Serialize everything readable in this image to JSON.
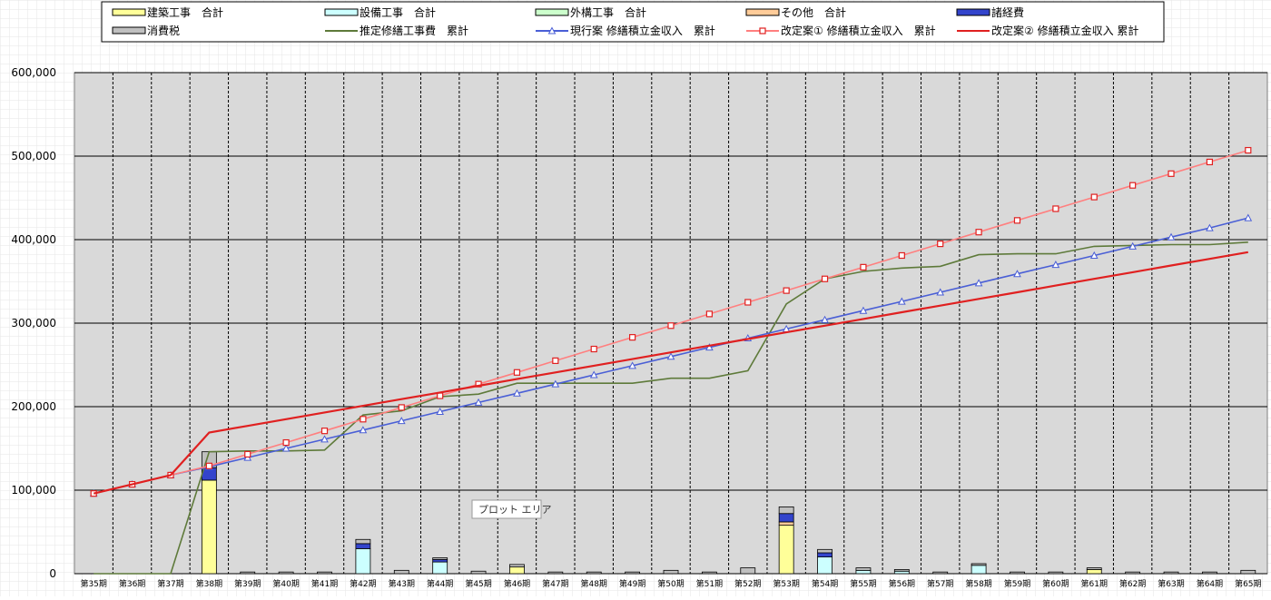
{
  "chart_data": {
    "type": "bar",
    "subtype": "stacked bar with cumulative lines",
    "categories": [
      "第35期",
      "第36期",
      "第37期",
      "第38期",
      "第39期",
      "第40期",
      "第41期",
      "第42期",
      "第43期",
      "第44期",
      "第45期",
      "第46期",
      "第47期",
      "第48期",
      "第49期",
      "第50期",
      "第51期",
      "第52期",
      "第53期",
      "第54期",
      "第55期",
      "第56期",
      "第57期",
      "第58期",
      "第59期",
      "第60期",
      "第61期",
      "第62期",
      "第63期",
      "第64期",
      "第65期"
    ],
    "ylim": [
      0,
      600000
    ],
    "yticks": [
      0,
      100000,
      200000,
      300000,
      400000,
      500000,
      600000
    ],
    "ytick_labels": [
      "0",
      "100,000",
      "200,000",
      "300,000",
      "400,000",
      "500,000",
      "600,000"
    ],
    "grid": true,
    "legend_position": "top",
    "tooltip": "プロット エリア",
    "bar_series": [
      {
        "name": "建築工事 合計",
        "color": "#FFFF99",
        "values": [
          0,
          0,
          0,
          112000,
          0,
          0,
          0,
          0,
          0,
          0,
          0,
          8000,
          0,
          0,
          0,
          0,
          0,
          0,
          58000,
          0,
          0,
          0,
          0,
          0,
          0,
          0,
          5000,
          0,
          0,
          0,
          0
        ]
      },
      {
        "name": "設備工事 合計",
        "color": "#CCFFFF",
        "values": [
          0,
          0,
          0,
          0,
          0,
          0,
          0,
          30000,
          0,
          14000,
          0,
          0,
          0,
          0,
          0,
          0,
          0,
          0,
          0,
          20000,
          4000,
          3000,
          0,
          10000,
          0,
          0,
          0,
          0,
          0,
          0,
          0
        ]
      },
      {
        "name": "外構工事 合計",
        "color": "#CCFFCC",
        "values": [
          0,
          0,
          0,
          0,
          0,
          0,
          0,
          0,
          0,
          0,
          0,
          0,
          0,
          0,
          0,
          0,
          0,
          0,
          0,
          0,
          0,
          0,
          0,
          0,
          0,
          0,
          0,
          0,
          0,
          0,
          0
        ]
      },
      {
        "name": "その他 合計",
        "color": "#FFCC99",
        "values": [
          0,
          0,
          0,
          0,
          0,
          0,
          0,
          0,
          0,
          0,
          0,
          0,
          0,
          0,
          0,
          0,
          0,
          0,
          4000,
          0,
          0,
          0,
          0,
          0,
          0,
          0,
          0,
          0,
          0,
          0,
          0
        ]
      },
      {
        "name": "諸経費",
        "color": "#3344CC",
        "values": [
          0,
          0,
          0,
          15000,
          0,
          0,
          0,
          6000,
          0,
          3000,
          0,
          0,
          0,
          0,
          0,
          0,
          0,
          0,
          10000,
          5000,
          0,
          0,
          0,
          0,
          0,
          0,
          0,
          0,
          0,
          0,
          0
        ]
      },
      {
        "name": "消費税",
        "color": "#C0C0C0",
        "values": [
          0,
          0,
          0,
          19000,
          2000,
          2000,
          2000,
          5000,
          4000,
          2000,
          3000,
          3000,
          2000,
          2000,
          2000,
          4000,
          2000,
          7000,
          8000,
          4000,
          3000,
          2000,
          2000,
          2000,
          2000,
          2000,
          2000,
          2000,
          2000,
          2000,
          4000
        ]
      }
    ],
    "line_series": [
      {
        "name": "推定修繕工事費 累計",
        "color": "#5E7A3A",
        "marker": "none",
        "values": [
          0,
          0,
          0,
          146000,
          147000,
          147000,
          148000,
          190000,
          195000,
          212000,
          215000,
          228000,
          228000,
          228000,
          228000,
          234000,
          234000,
          243000,
          323000,
          353000,
          362000,
          366000,
          368000,
          382000,
          383000,
          383000,
          392000,
          393000,
          394000,
          394000,
          397000
        ]
      },
      {
        "name": "現行案 修繕積立金収入 累計",
        "color": "#4A5FD6",
        "marker": "triangle",
        "values": [
          96000,
          107000,
          118000,
          128000,
          139000,
          150000,
          161000,
          172000,
          183000,
          194000,
          205000,
          216000,
          227000,
          238000,
          249000,
          260000,
          271000,
          282000,
          293000,
          304000,
          315000,
          326000,
          337000,
          348000,
          359000,
          370000,
          381000,
          392000,
          403000,
          414000,
          426000
        ]
      },
      {
        "name": "改定案① 修繕積立金収入 累計",
        "color": "#FF7F7F",
        "marker": "square",
        "values": [
          96000,
          107000,
          118000,
          129000,
          143000,
          157000,
          171000,
          185000,
          199000,
          213000,
          227000,
          241000,
          255000,
          269000,
          283000,
          297000,
          311000,
          325000,
          339000,
          353000,
          367000,
          381000,
          395000,
          409000,
          423000,
          437000,
          451000,
          465000,
          479000,
          493000,
          507000
        ]
      },
      {
        "name": "改定案② 修繕積立金収入 累計",
        "color": "#E02020",
        "marker": "none",
        "values": [
          96000,
          107000,
          118000,
          169000,
          177000,
          185000,
          193000,
          201000,
          209000,
          217000,
          225000,
          233000,
          241000,
          249000,
          257000,
          265000,
          273000,
          281000,
          289000,
          297000,
          305000,
          313000,
          321000,
          329000,
          337000,
          345000,
          353000,
          361000,
          369000,
          377000,
          385000
        ]
      }
    ]
  },
  "legend": {
    "row1": [
      "建築工事　合計",
      "設備工事　合計",
      "外構工事　合計",
      "その他　合計",
      "諸経費"
    ],
    "row2": [
      "消費税",
      "推定修繕工事費　累計",
      "現行案 修繕積立金収入　累計",
      "改定案① 修繕積立金収入　累計",
      "改定案② 修繕積立金収入 累計"
    ]
  }
}
